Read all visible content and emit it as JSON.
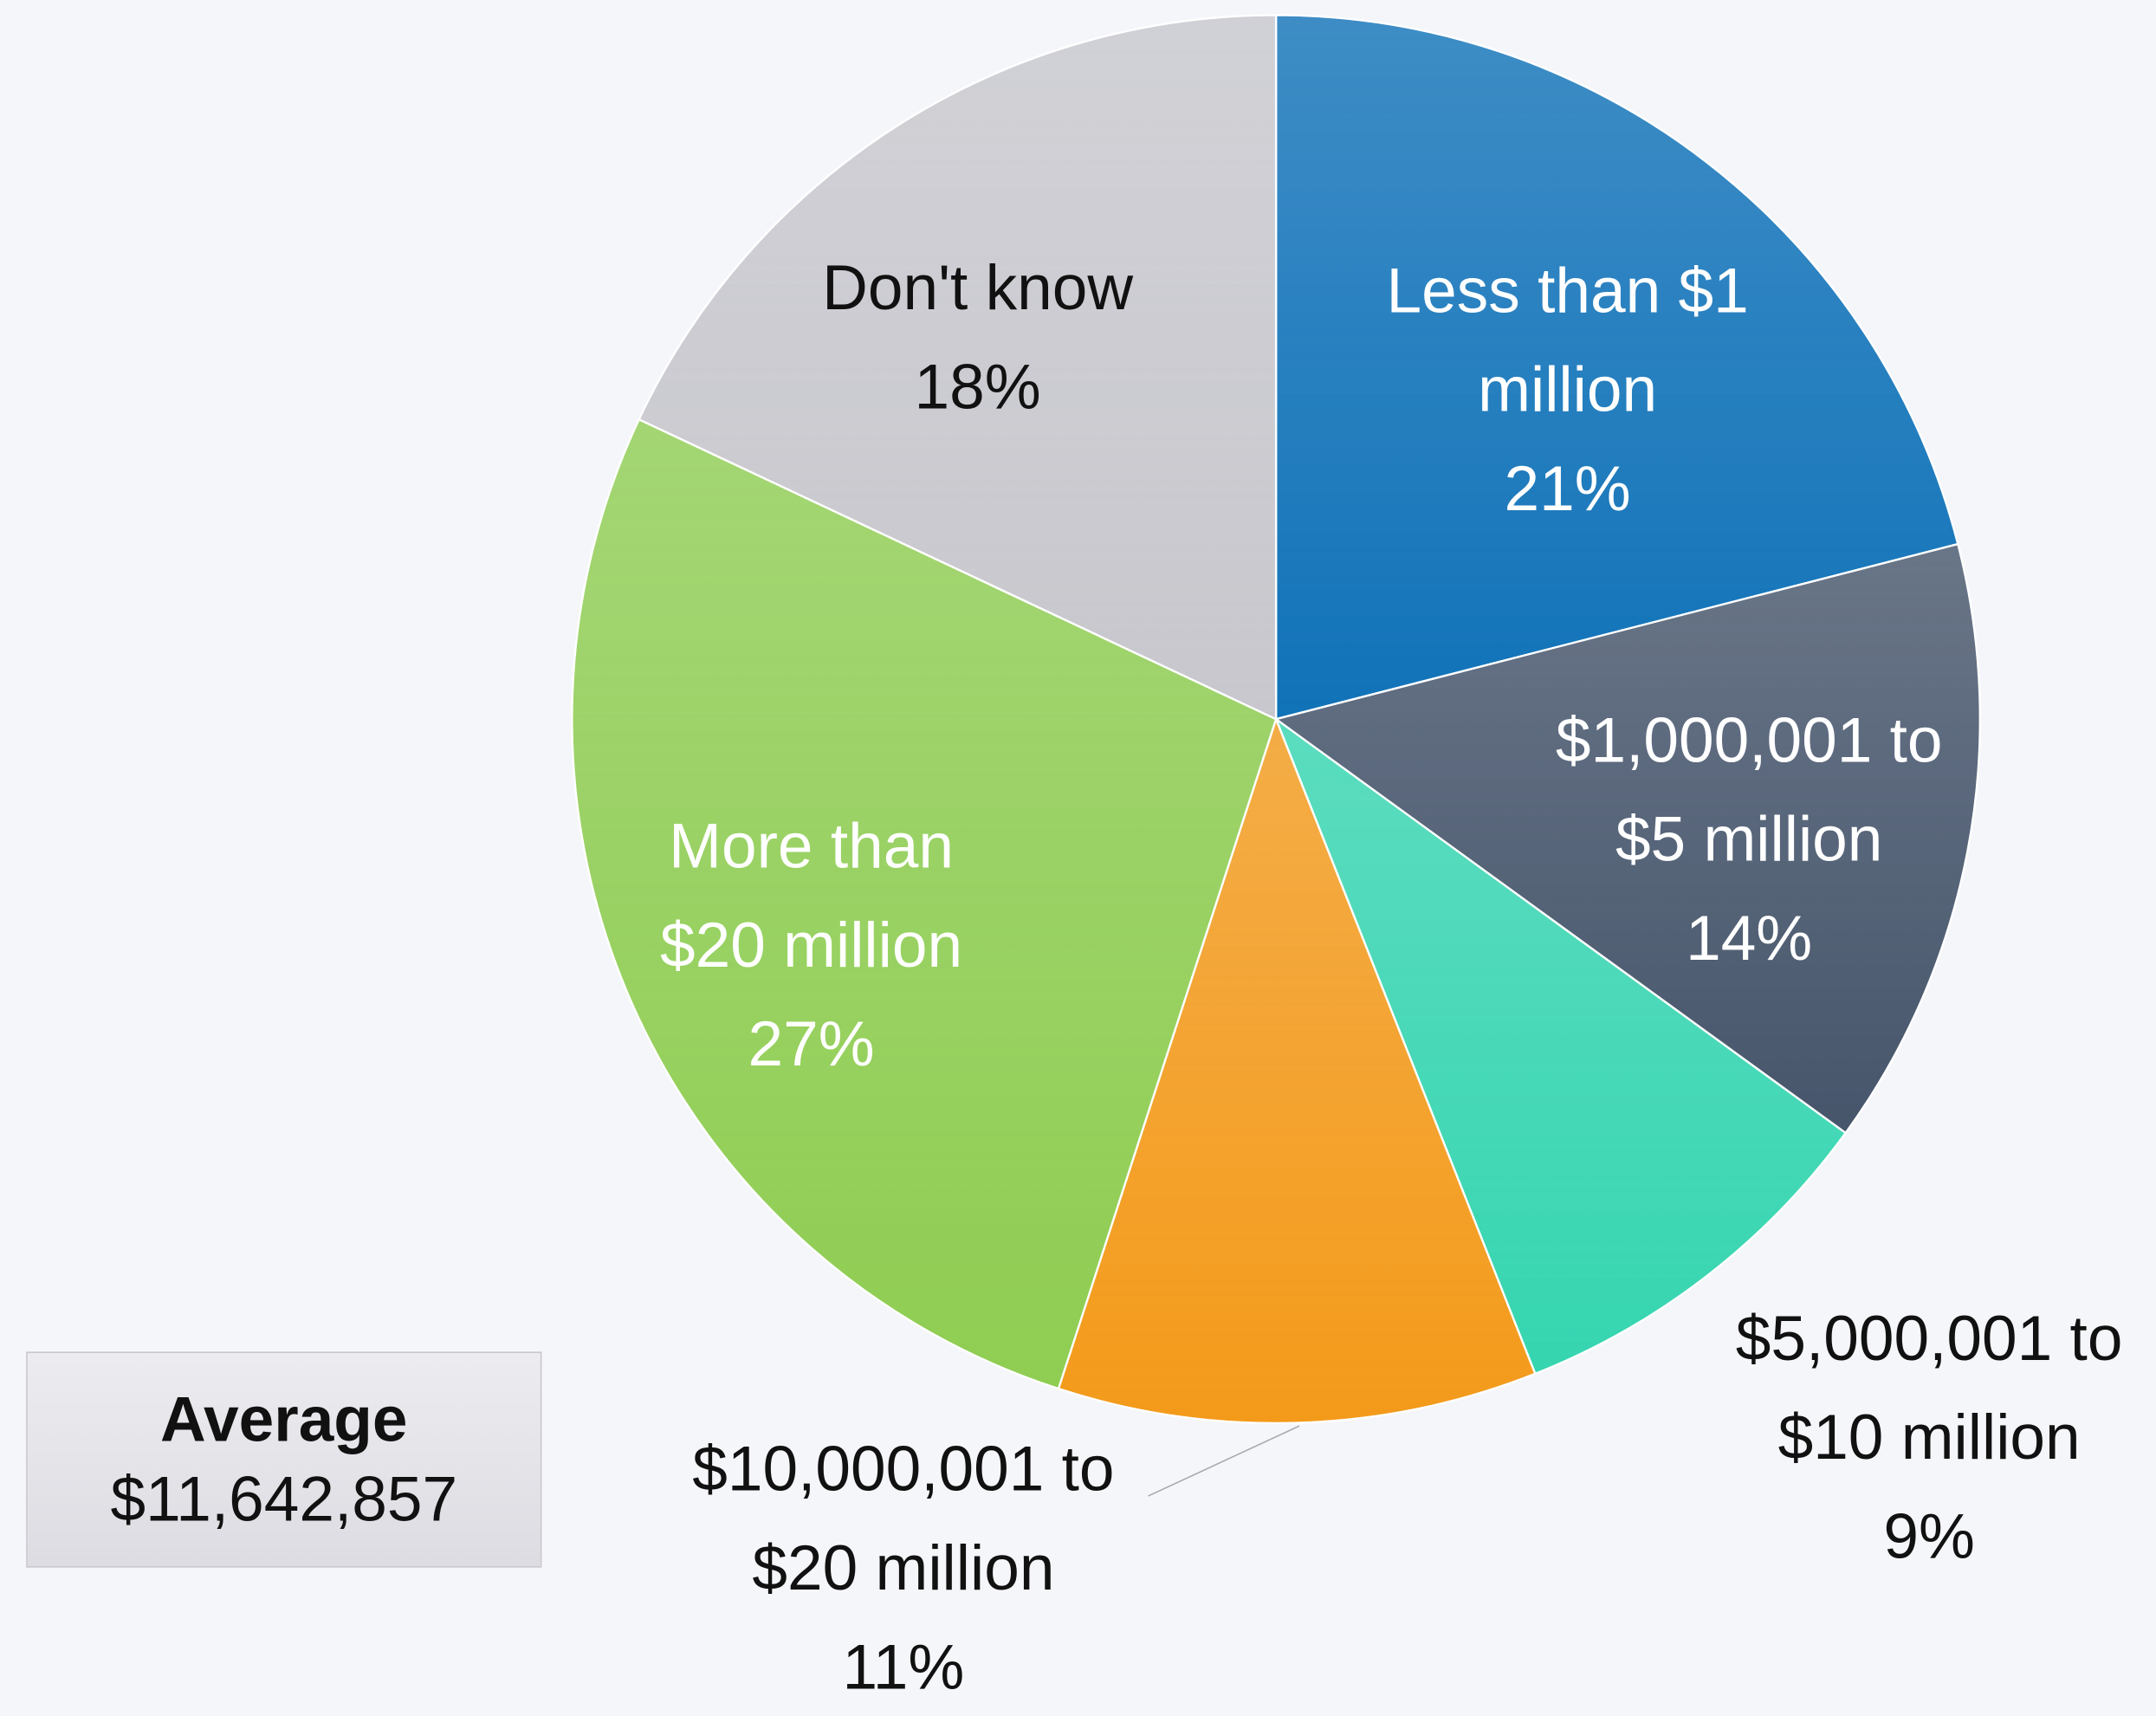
{
  "chart_data": {
    "type": "pie",
    "categories": [
      "Less than $1 million",
      "$1,000,001 to $5 million",
      "$5,000,001 to $10 million",
      "$10,000,001 to $20 million",
      "More than $20 million",
      "Don't know"
    ],
    "values": [
      21,
      14,
      9,
      11,
      27,
      18
    ],
    "value_labels": [
      "21%",
      "14%",
      "9%",
      "11%",
      "27%",
      "18%"
    ],
    "colors": [
      "#1072b8",
      "#46556b",
      "#35d5b0",
      "#f39a1a",
      "#8fcd52",
      "#c7c7cd"
    ],
    "annotation": {
      "label": "Average",
      "text": "$11,642,857"
    }
  }
}
